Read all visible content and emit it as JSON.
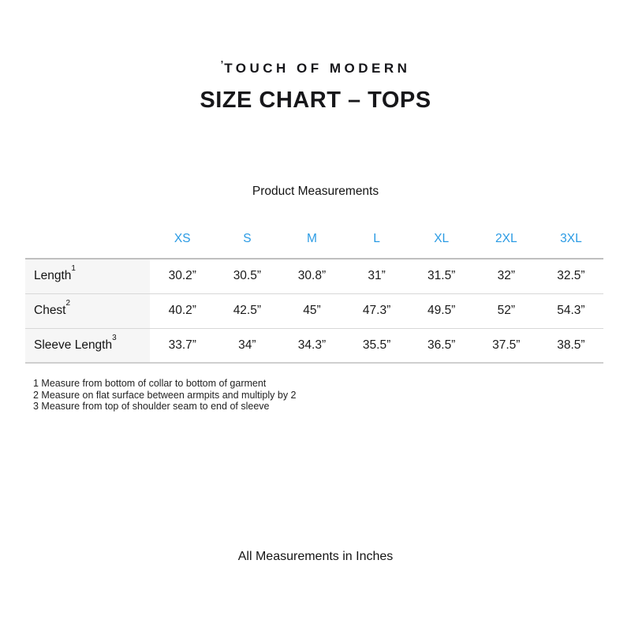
{
  "brand": {
    "mark": "’",
    "name": "TOUCH OF MODERN"
  },
  "page_title": "SIZE CHART – TOPS",
  "section_heading": "Product Measurements",
  "table": {
    "size_headers": [
      "XS",
      "S",
      "M",
      "L",
      "XL",
      "2XL",
      "3XL"
    ],
    "rows": [
      {
        "label": "Length",
        "footnote_ref": "1",
        "values": [
          "30.2”",
          "30.5”",
          "30.8”",
          "31”",
          "31.5”",
          "32”",
          "32.5”"
        ]
      },
      {
        "label": "Chest",
        "footnote_ref": "2",
        "values": [
          "40.2”",
          "42.5”",
          "45”",
          "47.3”",
          "49.5”",
          "52”",
          "54.3”"
        ]
      },
      {
        "label": "Sleeve Length",
        "footnote_ref": "3",
        "values": [
          "33.7”",
          "34”",
          "34.3”",
          "35.5”",
          "36.5”",
          "37.5”",
          "38.5”"
        ]
      }
    ]
  },
  "footnotes": [
    "1 Measure from bottom of collar to bottom of garment",
    "2 Measure on flat surface between armpits and multiply by 2",
    "3 Measure from top of shoulder seam to end of sleeve"
  ],
  "footer_note": "All Measurements in Inches",
  "colors": {
    "accent_blue": "#2b9be4",
    "row_label_bg": "#f6f6f6",
    "divider_gray": "#d8d8d8"
  },
  "chart_data": {
    "type": "table",
    "title": "SIZE CHART – TOPS",
    "subtitle": "Product Measurements",
    "units": "inches",
    "columns": [
      "XS",
      "S",
      "M",
      "L",
      "XL",
      "2XL",
      "3XL"
    ],
    "rows": [
      {
        "name": "Length",
        "footnote": 1,
        "values": [
          30.2,
          30.5,
          30.8,
          31,
          31.5,
          32,
          32.5
        ]
      },
      {
        "name": "Chest",
        "footnote": 2,
        "values": [
          40.2,
          42.5,
          45,
          47.3,
          49.5,
          52,
          54.3
        ]
      },
      {
        "name": "Sleeve Length",
        "footnote": 3,
        "values": [
          33.7,
          34,
          34.3,
          35.5,
          36.5,
          37.5,
          38.5
        ]
      }
    ],
    "notes": [
      "1 Measure from bottom of collar to bottom of garment",
      "2 Measure on flat surface between armpits and multiply by 2",
      "3 Measure from top of shoulder seam to end of sleeve",
      "All Measurements in Inches"
    ]
  }
}
